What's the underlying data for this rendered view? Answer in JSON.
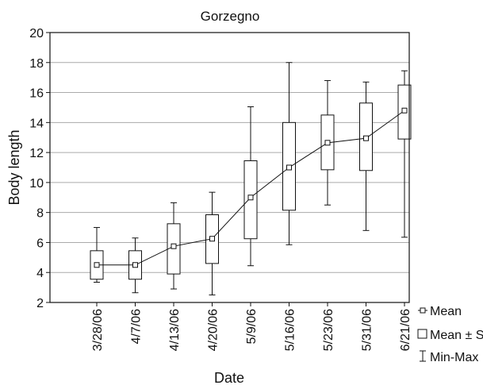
{
  "chart_data": {
    "type": "box",
    "title": "Gorzegno",
    "xlabel": "Date",
    "ylabel": "Body length",
    "ylim": [
      2,
      20
    ],
    "yticks": [
      2,
      4,
      6,
      8,
      10,
      12,
      14,
      16,
      18,
      20
    ],
    "grid": true,
    "legend_position": "bottom-right, outside plot",
    "categories": [
      "3/28/06",
      "4/7/06",
      "4/13/06",
      "4/20/06",
      "5/9/06",
      "5/16/06",
      "5/23/06",
      "5/31/06",
      "6/21/06"
    ],
    "series": [
      {
        "name": "Mean",
        "values": [
          4.5,
          4.5,
          5.75,
          6.25,
          9.0,
          11.0,
          12.65,
          12.95,
          14.8
        ]
      },
      {
        "name": "Mean ± SD",
        "lower": [
          3.55,
          3.55,
          3.9,
          4.6,
          6.25,
          8.15,
          10.85,
          10.8,
          12.9
        ],
        "upper": [
          5.45,
          5.45,
          7.25,
          7.85,
          11.45,
          14.0,
          14.5,
          15.3,
          16.5
        ]
      },
      {
        "name": "Min-Max",
        "min": [
          3.35,
          2.65,
          2.9,
          2.5,
          4.45,
          5.85,
          8.5,
          6.8,
          6.35
        ],
        "max": [
          7.0,
          6.3,
          8.65,
          9.35,
          15.05,
          18.0,
          16.8,
          16.7,
          17.45
        ]
      }
    ],
    "legend": [
      {
        "symbol": "⊡",
        "label": "Mean"
      },
      {
        "symbol": "□",
        "label": "Mean ± SD"
      },
      {
        "symbol": "I",
        "label": "Min-Max"
      }
    ],
    "colors": {
      "axis": "#111111",
      "grid": "#aaaaaa",
      "box_fill": "#ffffff",
      "line": "#111111"
    }
  }
}
